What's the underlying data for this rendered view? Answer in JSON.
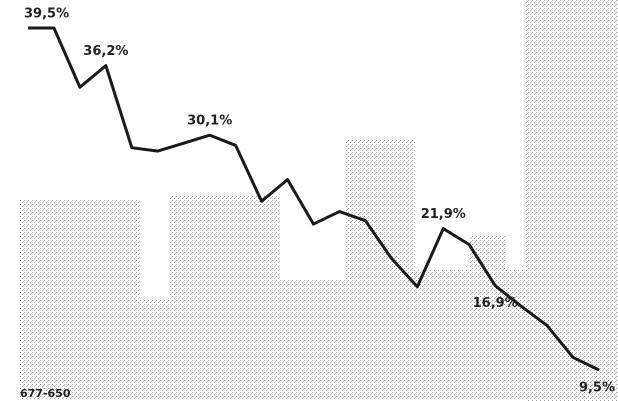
{
  "chart_data": {
    "type": "line",
    "categories": [
      null,
      null,
      null,
      null,
      null,
      null,
      null,
      null,
      null,
      null,
      null,
      null,
      null,
      null,
      null,
      null,
      null,
      null,
      null,
      null,
      null,
      null,
      null
    ],
    "series": [
      {
        "color": "#1a1a1a",
        "values": [
          39.5,
          39.5,
          34.3,
          36.2,
          29.0,
          28.7,
          29.4,
          30.1,
          29.2,
          24.3,
          26.2,
          22.3,
          23.4,
          22.6,
          19.3,
          16.8,
          21.9,
          20.5,
          16.9,
          15.1,
          13.4,
          10.6,
          9.5
        ],
        "value_labels": [
          "39,5%",
          null,
          null,
          "36,2%",
          null,
          null,
          null,
          "30,1%",
          null,
          null,
          null,
          null,
          null,
          null,
          null,
          null,
          "21,9%",
          null,
          "16,9%",
          null,
          null,
          null,
          "9,5%"
        ]
      }
    ],
    "annotation": "677-650"
  }
}
